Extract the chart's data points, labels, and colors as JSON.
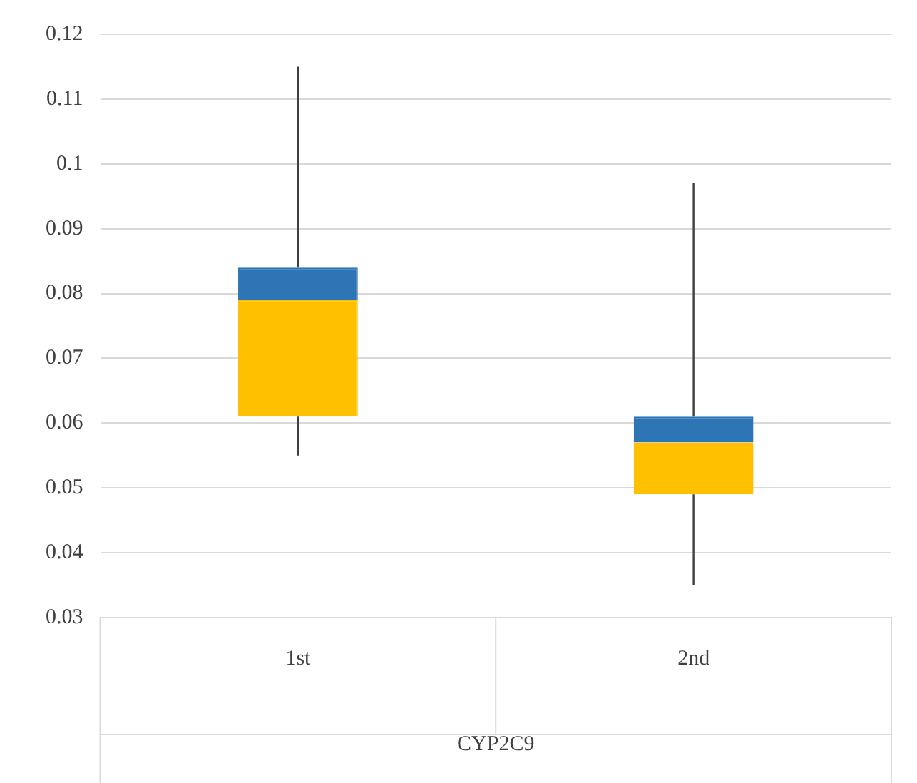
{
  "chart_data": {
    "type": "box",
    "xlabel": "CYP2C9",
    "categories": [
      "1st",
      "2nd"
    ],
    "boxes": [
      {
        "low": 0.055,
        "q1": 0.061,
        "median": 0.079,
        "q3": 0.084,
        "high": 0.115
      },
      {
        "low": 0.035,
        "q1": 0.049,
        "median": 0.057,
        "q3": 0.061,
        "high": 0.097
      }
    ],
    "color": "#ffc000",
    "ylim": [
      0.03,
      0.12
    ],
    "yticks": [
      0.03,
      0.04,
      0.05,
      0.06,
      0.07,
      0.08,
      0.09,
      0.1,
      0.11,
      0.12
    ],
    "grid": "y",
    "legend": false
  }
}
